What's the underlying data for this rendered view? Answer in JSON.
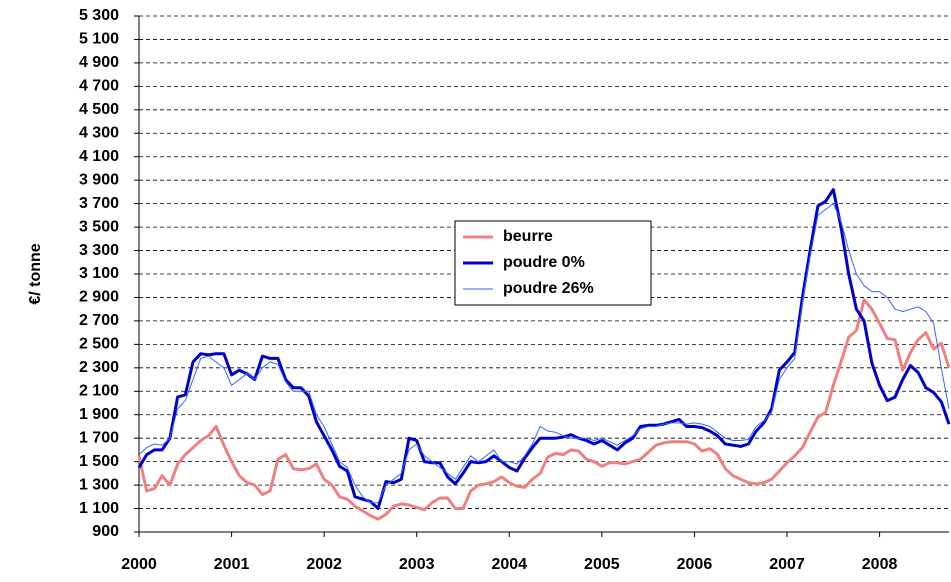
{
  "chart_data": {
    "type": "line",
    "ylabel": "€/ tonne",
    "categories": [
      "2000",
      null,
      null,
      null,
      null,
      null,
      null,
      null,
      null,
      null,
      null,
      null,
      "2001",
      null,
      null,
      null,
      null,
      null,
      null,
      null,
      null,
      null,
      null,
      null,
      "2002",
      null,
      null,
      null,
      null,
      null,
      null,
      null,
      null,
      null,
      null,
      null,
      "2003",
      null,
      null,
      null,
      null,
      null,
      null,
      null,
      null,
      null,
      null,
      null,
      "2004",
      null,
      null,
      null,
      null,
      null,
      null,
      null,
      null,
      null,
      null,
      null,
      "2005",
      null,
      null,
      null,
      null,
      null,
      null,
      null,
      null,
      null,
      null,
      null,
      "2006",
      null,
      null,
      null,
      null,
      null,
      null,
      null,
      null,
      null,
      null,
      null,
      "2007",
      null,
      null,
      null,
      null,
      null,
      null,
      null,
      null,
      null,
      null,
      null,
      "2008",
      null,
      null,
      null,
      null,
      null,
      null,
      null,
      null,
      null
    ],
    "series": [
      {
        "name": "beurre",
        "color": "#f08080",
        "width": 3,
        "values": [
          1550,
          1250,
          1270,
          1380,
          1300,
          1480,
          1560,
          1620,
          1680,
          1720,
          1800,
          1640,
          1500,
          1380,
          1320,
          1300,
          1220,
          1250,
          1520,
          1560,
          1440,
          1430,
          1440,
          1480,
          1350,
          1300,
          1200,
          1180,
          1120,
          1080,
          1040,
          1010,
          1050,
          1120,
          1140,
          1130,
          1110,
          1090,
          1150,
          1190,
          1190,
          1100,
          1100,
          1250,
          1300,
          1310,
          1330,
          1370,
          1320,
          1290,
          1280,
          1350,
          1400,
          1540,
          1570,
          1560,
          1600,
          1590,
          1520,
          1500,
          1460,
          1490,
          1490,
          1480,
          1500,
          1520,
          1580,
          1640,
          1660,
          1670,
          1670,
          1670,
          1650,
          1590,
          1610,
          1560,
          1440,
          1380,
          1350,
          1320,
          1310,
          1320,
          1350,
          1420,
          1490,
          1550,
          1620,
          1750,
          1880,
          1920,
          2150,
          2350,
          2560,
          2620,
          2880,
          2800,
          2680,
          2550,
          2540,
          2280,
          2430,
          2540,
          2600,
          2460,
          2510,
          2300
        ]
      },
      {
        "name": "poudre 0%",
        "color": "#0000cc",
        "width": 3,
        "values": [
          1450,
          1560,
          1600,
          1600,
          1700,
          2050,
          2070,
          2350,
          2420,
          2410,
          2420,
          2420,
          2240,
          2280,
          2250,
          2200,
          2400,
          2380,
          2380,
          2200,
          2130,
          2130,
          2060,
          1840,
          1720,
          1600,
          1460,
          1420,
          1200,
          1180,
          1160,
          1100,
          1330,
          1320,
          1350,
          1700,
          1680,
          1500,
          1490,
          1490,
          1370,
          1310,
          1400,
          1500,
          1490,
          1500,
          1550,
          1500,
          1450,
          1420,
          1530,
          1620,
          1700,
          1700,
          1700,
          1710,
          1730,
          1700,
          1680,
          1650,
          1680,
          1640,
          1600,
          1660,
          1700,
          1800,
          1810,
          1810,
          1820,
          1840,
          1860,
          1800,
          1800,
          1790,
          1760,
          1720,
          1650,
          1640,
          1630,
          1650,
          1760,
          1830,
          1950,
          2280,
          2350,
          2430,
          2900,
          3300,
          3680,
          3720,
          3820,
          3500,
          3100,
          2800,
          2700,
          2340,
          2150,
          2020,
          2050,
          2200,
          2320,
          2260,
          2130,
          2090,
          2010,
          1820
        ]
      },
      {
        "name": "poudre 26%",
        "color": "#3366ff",
        "width": 1,
        "values": [
          1560,
          1620,
          1650,
          1640,
          1700,
          1950,
          2020,
          2200,
          2380,
          2400,
          2350,
          2300,
          2150,
          2200,
          2250,
          2200,
          2300,
          2350,
          2330,
          2180,
          2100,
          2100,
          2100,
          1900,
          1800,
          1650,
          1500,
          1450,
          1300,
          1200,
          1150,
          1150,
          1300,
          1350,
          1400,
          1600,
          1650,
          1550,
          1500,
          1450,
          1400,
          1350,
          1450,
          1550,
          1500,
          1550,
          1600,
          1500,
          1500,
          1480,
          1550,
          1650,
          1800,
          1760,
          1750,
          1720,
          1700,
          1700,
          1700,
          1680,
          1700,
          1670,
          1640,
          1680,
          1720,
          1780,
          1800,
          1800,
          1820,
          1830,
          1830,
          1820,
          1830,
          1820,
          1800,
          1750,
          1700,
          1680,
          1680,
          1690,
          1800,
          1850,
          1920,
          2200,
          2300,
          2380,
          2850,
          3250,
          3600,
          3650,
          3700,
          3550,
          3300,
          3100,
          3000,
          2950,
          2950,
          2900,
          2800,
          2780,
          2800,
          2820,
          2780,
          2680,
          2300,
          1950
        ]
      }
    ],
    "ylim": [
      900,
      5300
    ],
    "yticks": [
      900,
      {
        "value": 1100,
        "label": "1 100"
      },
      {
        "value": 1300,
        "label": "1 300"
      },
      {
        "value": 1500,
        "label": "1 500"
      },
      {
        "value": 1700,
        "label": "1 700"
      },
      {
        "value": 1900,
        "label": "1 900"
      },
      {
        "value": 2100,
        "label": "2 100"
      },
      {
        "value": 2300,
        "label": "2 300"
      },
      {
        "value": 2500,
        "label": "2 500"
      },
      {
        "value": 2700,
        "label": "2 700"
      },
      {
        "value": 2900,
        "label": "2 900"
      },
      {
        "value": 3100,
        "label": "3 100"
      },
      {
        "value": 3300,
        "label": "3 300"
      },
      {
        "value": 3500,
        "label": "3 500"
      },
      {
        "value": 3700,
        "label": "3 700"
      },
      {
        "value": 3900,
        "label": "3 900"
      },
      {
        "value": 4100,
        "label": "4 100"
      },
      {
        "value": 4300,
        "label": "4 300"
      },
      {
        "value": 4500,
        "label": "4 500"
      },
      {
        "value": 4700,
        "label": "4 700"
      },
      {
        "value": 4900,
        "label": "4 900"
      },
      {
        "value": 5100,
        "label": "5 100"
      },
      {
        "value": 5300,
        "label": "5 300"
      }
    ],
    "grid": true,
    "legend": "center"
  }
}
